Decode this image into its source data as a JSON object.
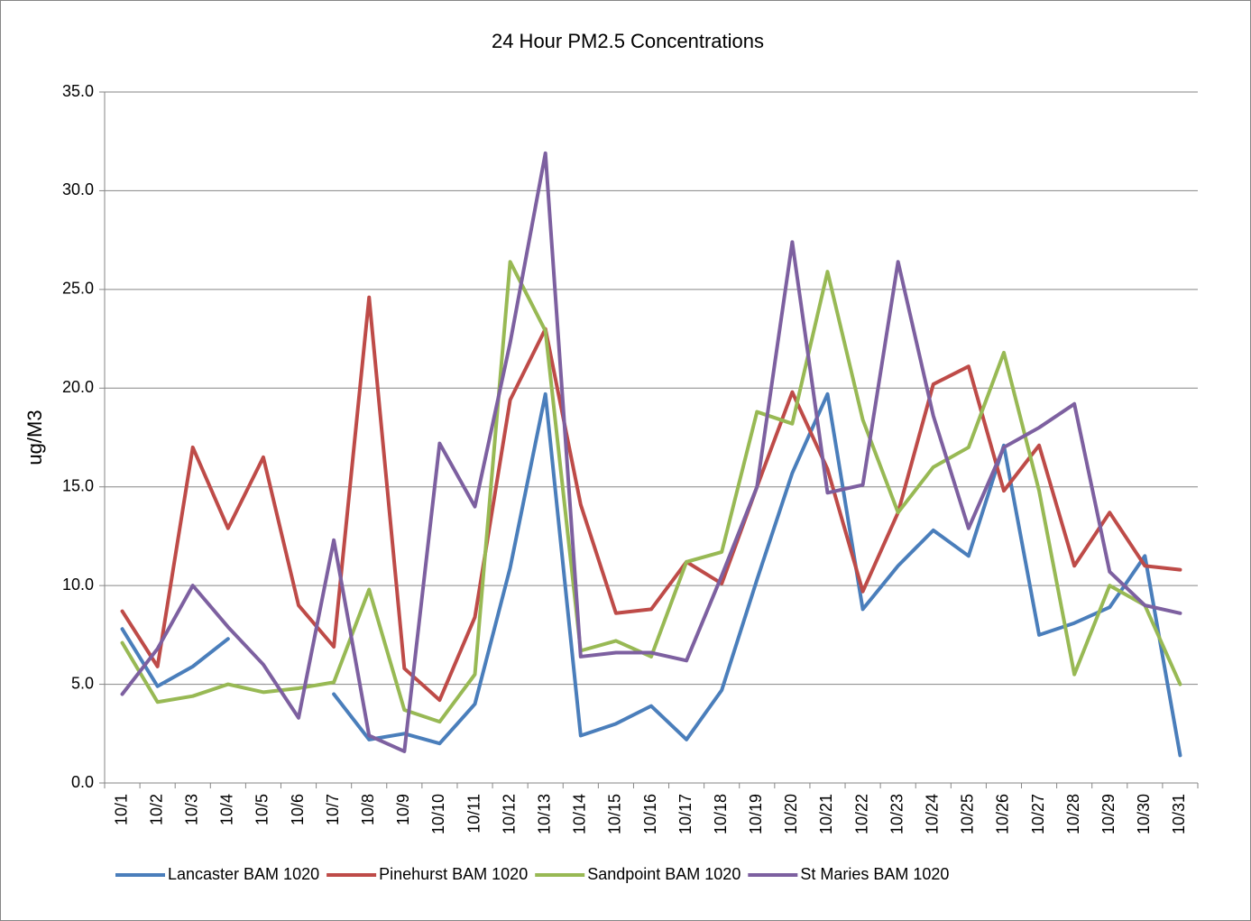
{
  "chart_data": {
    "type": "line",
    "title": "24 Hour PM2.5 Concentrations",
    "y_label": "ug/M3",
    "categories": [
      "10/1",
      "10/2",
      "10/3",
      "10/4",
      "10/5",
      "10/6",
      "10/7",
      "10/8",
      "10/9",
      "10/10",
      "10/11",
      "10/12",
      "10/13",
      "10/14",
      "10/15",
      "10/16",
      "10/17",
      "10/18",
      "10/19",
      "10/20",
      "10/21",
      "10/22",
      "10/23",
      "10/24",
      "10/25",
      "10/26",
      "10/27",
      "10/28",
      "10/29",
      "10/30",
      "10/31"
    ],
    "series": [
      {
        "name": "Lancaster BAM 1020",
        "color": "#4a7ebb",
        "values": [
          7.8,
          4.9,
          5.9,
          7.3,
          null,
          null,
          4.5,
          2.2,
          2.5,
          2.0,
          4.0,
          10.9,
          19.7,
          2.4,
          3.0,
          3.9,
          2.2,
          4.7,
          10.3,
          15.7,
          19.7,
          8.8,
          11.0,
          12.8,
          11.5,
          17.1,
          7.5,
          8.1,
          8.9,
          11.5,
          1.4
        ]
      },
      {
        "name": "Pinehurst BAM 1020",
        "color": "#be4b48",
        "values": [
          8.7,
          5.9,
          17.0,
          12.9,
          16.5,
          9.0,
          6.9,
          24.6,
          5.8,
          4.2,
          8.4,
          19.4,
          23.0,
          14.1,
          8.6,
          8.8,
          11.2,
          10.1,
          15.0,
          19.8,
          15.9,
          9.7,
          13.7,
          20.2,
          21.1,
          14.8,
          17.1,
          11.0,
          13.7,
          11.0,
          10.8
        ]
      },
      {
        "name": "Sandpoint BAM 1020",
        "color": "#98b954",
        "values": [
          7.1,
          4.1,
          4.4,
          5.0,
          4.6,
          4.8,
          5.1,
          9.8,
          3.7,
          3.1,
          5.5,
          26.4,
          22.9,
          6.7,
          7.2,
          6.4,
          11.2,
          11.7,
          18.8,
          18.2,
          25.9,
          18.4,
          13.7,
          16.0,
          17.0,
          21.8,
          14.8,
          5.5,
          10.0,
          9.0,
          5.0
        ]
      },
      {
        "name": "St Maries BAM 1020",
        "color": "#7d60a0",
        "values": [
          4.5,
          6.8,
          10.0,
          7.9,
          6.0,
          3.3,
          12.3,
          2.4,
          1.6,
          17.2,
          14.0,
          22.3,
          31.9,
          6.4,
          6.6,
          6.6,
          6.2,
          10.5,
          15.0,
          27.4,
          14.7,
          15.1,
          26.4,
          18.6,
          12.9,
          17.0,
          18.0,
          19.2,
          10.7,
          9.0,
          8.6
        ]
      }
    ],
    "ylim": [
      0,
      35
    ],
    "yticks": [
      {
        "value": 0,
        "label": "0.0"
      },
      {
        "value": 5,
        "label": "5.0"
      },
      {
        "value": 10,
        "label": "10.0"
      },
      {
        "value": 15,
        "label": "15.0"
      },
      {
        "value": 20,
        "label": "20.0"
      },
      {
        "value": 25,
        "label": "25.0"
      },
      {
        "value": 30,
        "label": "30.0"
      },
      {
        "value": 35,
        "label": "35.0"
      }
    ],
    "grid": true,
    "legend": "bottom"
  }
}
